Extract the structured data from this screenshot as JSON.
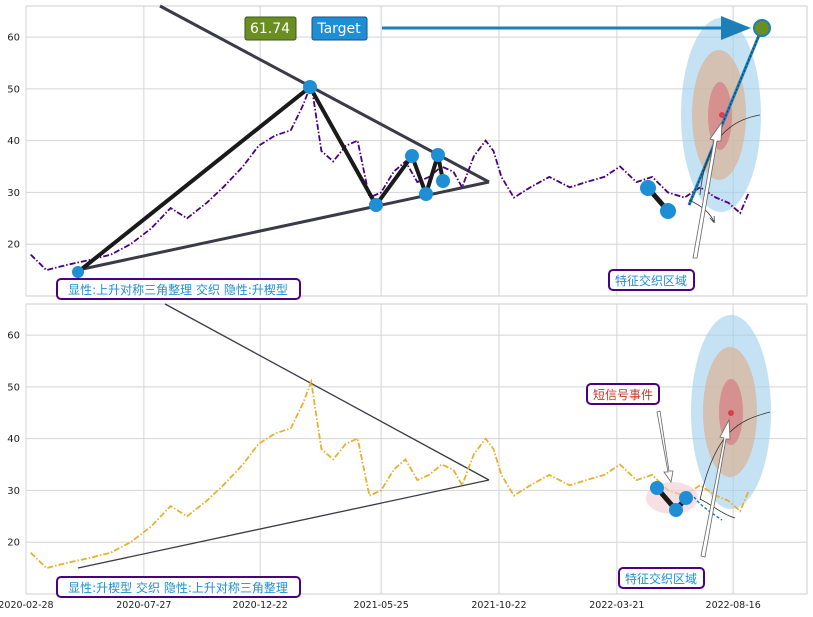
{
  "chart_data": [
    {
      "type": "line",
      "panel": "top",
      "ylim": [
        10,
        66
      ],
      "yticks": [
        20,
        30,
        40,
        50,
        60
      ],
      "grid": true,
      "series": [
        {
          "color": "#4b0082",
          "style": "dash-dot",
          "x": [
            "2020-03-05",
            "2020-03-25",
            "2020-04-20",
            "2020-05-20",
            "2020-06-15",
            "2020-07-10",
            "2020-08-05",
            "2020-08-30",
            "2020-09-20",
            "2020-10-15",
            "2020-11-05",
            "2020-11-30",
            "2020-12-20",
            "2021-01-10",
            "2021-01-30",
            "2021-02-15",
            "2021-02-25",
            "2021-03-10",
            "2021-03-25",
            "2021-04-10",
            "2021-04-25",
            "2021-05-10",
            "2021-05-25",
            "2021-06-10",
            "2021-06-25",
            "2021-07-10",
            "2021-07-25",
            "2021-08-10",
            "2021-08-25",
            "2021-09-05",
            "2021-09-20",
            "2021-10-05",
            "2021-10-15",
            "2021-10-25",
            "2021-11-10",
            "2021-12-01",
            "2021-12-25",
            "2022-01-20",
            "2022-02-10",
            "2022-03-05",
            "2022-03-25",
            "2022-04-15",
            "2022-05-05",
            "2022-05-25",
            "2022-06-15",
            "2022-07-05",
            "2022-07-25",
            "2022-08-10",
            "2022-08-25",
            "2022-09-05"
          ],
          "y": [
            18,
            15,
            16,
            17,
            18,
            20,
            23,
            27,
            25,
            28,
            31,
            35,
            39,
            41,
            42,
            47,
            51,
            38,
            36,
            39,
            40,
            29,
            30,
            34,
            36,
            32,
            33,
            35,
            34,
            31,
            37,
            40,
            38,
            33,
            29,
            31,
            33,
            31,
            32,
            33,
            35,
            32,
            33,
            30,
            29,
            31,
            29,
            28,
            26,
            30
          ]
        }
      ],
      "pattern_points": [
        {
          "x": "2020-03-25",
          "y": 14.5
        },
        {
          "x": "2021-03-05",
          "y": 50.5
        },
        {
          "x": "2021-06-15",
          "y": 28
        },
        {
          "x": "2021-07-25",
          "y": 37
        },
        {
          "x": "2021-08-20",
          "y": 30
        },
        {
          "x": "2021-09-01",
          "y": 37
        },
        {
          "x": "2021-09-08",
          "y": 32.5
        }
      ],
      "signal_points": [
        {
          "x": "2022-07-28",
          "y": 31
        },
        {
          "x": "2022-08-10",
          "y": 26.5
        }
      ],
      "target": {
        "label": "Target",
        "value": "61.74",
        "x": "2022-10-15",
        "y": 61.74
      },
      "annotations": [
        "显性:上升对称三角整理 交织 隐性:升楔型",
        "特征交织区域"
      ]
    },
    {
      "type": "line",
      "panel": "bottom",
      "ylim": [
        10,
        66
      ],
      "yticks": [
        20,
        30,
        40,
        50,
        60
      ],
      "grid": true,
      "series": [
        {
          "color": "#e8b030",
          "style": "dash-dot",
          "x": [
            "2020-03-05",
            "2020-03-25",
            "2020-04-20",
            "2020-05-20",
            "2020-06-15",
            "2020-07-10",
            "2020-08-05",
            "2020-08-30",
            "2020-09-20",
            "2020-10-15",
            "2020-11-05",
            "2020-11-30",
            "2020-12-20",
            "2021-01-10",
            "2021-01-30",
            "2021-02-15",
            "2021-02-25",
            "2021-03-10",
            "2021-03-25",
            "2021-04-10",
            "2021-04-25",
            "2021-05-10",
            "2021-05-25",
            "2021-06-10",
            "2021-06-25",
            "2021-07-10",
            "2021-07-25",
            "2021-08-10",
            "2021-08-25",
            "2021-09-05",
            "2021-09-20",
            "2021-10-05",
            "2021-10-15",
            "2021-10-25",
            "2021-11-10",
            "2021-12-01",
            "2021-12-25",
            "2022-01-20",
            "2022-02-10",
            "2022-03-05",
            "2022-03-25",
            "2022-04-15",
            "2022-05-05",
            "2022-05-25",
            "2022-06-15",
            "2022-07-05",
            "2022-07-25",
            "2022-08-10",
            "2022-08-25",
            "2022-09-05"
          ],
          "y": [
            18,
            15,
            16,
            17,
            18,
            20,
            23,
            27,
            25,
            28,
            31,
            35,
            39,
            41,
            42,
            47,
            51,
            38,
            36,
            39,
            40,
            29,
            30,
            34,
            36,
            32,
            33,
            35,
            34,
            31,
            37,
            40,
            38,
            33,
            29,
            31,
            33,
            31,
            32,
            33,
            35,
            32,
            33,
            30,
            29,
            31,
            29,
            28,
            26,
            30
          ]
        }
      ],
      "signal_points": [
        {
          "x": "2022-07-28",
          "y": 31
        },
        {
          "x": "2022-08-10",
          "y": 26.5
        },
        {
          "x": "2022-08-15",
          "y": 28.5
        }
      ],
      "annotations": [
        "短信号事件",
        "显性:升楔型 交织 隐性:上升对称三角整理",
        "特征交织区域"
      ]
    }
  ],
  "x_ticks": [
    "2020-02-28",
    "2020-07-27",
    "2020-12-22",
    "2021-05-25",
    "2021-10-22",
    "2022-03-21",
    "2022-08-16"
  ],
  "colors": {
    "top_line": "#4b0082",
    "bottom_line": "#e8b030",
    "pattern_black": "#1a1a1a",
    "trendline": "#3a3a48",
    "point_blue": "#1e8fd5",
    "target_green": "#6b8e23",
    "label_border": "#4b0082",
    "label_text": "#1e8fd5",
    "short_signal_text": "#c0392b"
  },
  "labels": {
    "top_pattern": "显性:上升对称三角整理 交织 隐性:升楔型",
    "bottom_pattern": "显性:升楔型 交织 隐性:上升对称三角整理",
    "zone": "特征交织区域",
    "short_signal": "短信号事件",
    "target_value": "61.74",
    "target_label": "Target"
  }
}
